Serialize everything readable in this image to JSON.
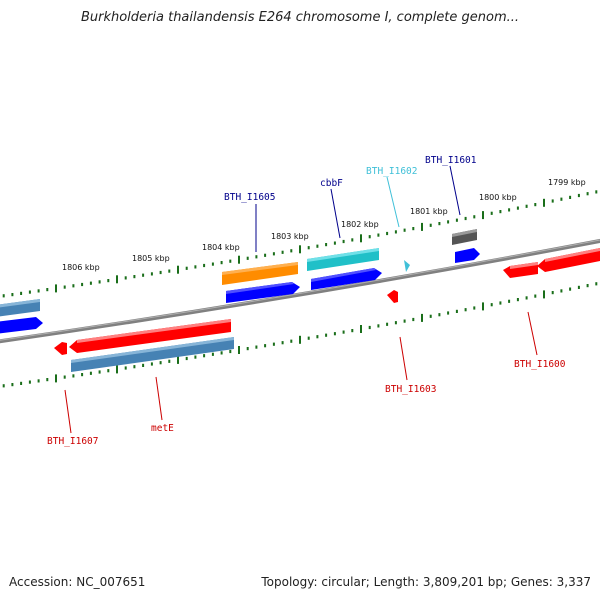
{
  "title": "Burkholderia thailandensis E264 chromosome I, complete genom...",
  "footer": {
    "accession": "Accession: NC_007651",
    "topology": "Topology: circular; Length: 3,809,201 bp; Genes: 3,337"
  },
  "kbp_labels": [
    "1806 kbp",
    "1805 kbp",
    "1804 kbp",
    "1803 kbp",
    "1802 kbp",
    "1801 kbp",
    "1800 kbp",
    "1799 kbp"
  ],
  "gene_labels": [
    "BTH_I1605",
    "cbbF",
    "BTH_I1602",
    "BTH_I1601",
    "BTH_I1607",
    "metE",
    "BTH_I1603",
    "BTH_I1600"
  ],
  "colors": {
    "background": "#ffffff",
    "backbone": "#808080",
    "tick": "#1a6e1a",
    "red": "#ff0000",
    "blue": "#0000ff",
    "steelblue": "#4682b4",
    "orange": "#ff8c00",
    "cyan": "#20c0c8",
    "gray": "#555555",
    "label_blue": "#00008b",
    "label_cyan": "#40c0d8",
    "label_red": "#cc0000"
  }
}
